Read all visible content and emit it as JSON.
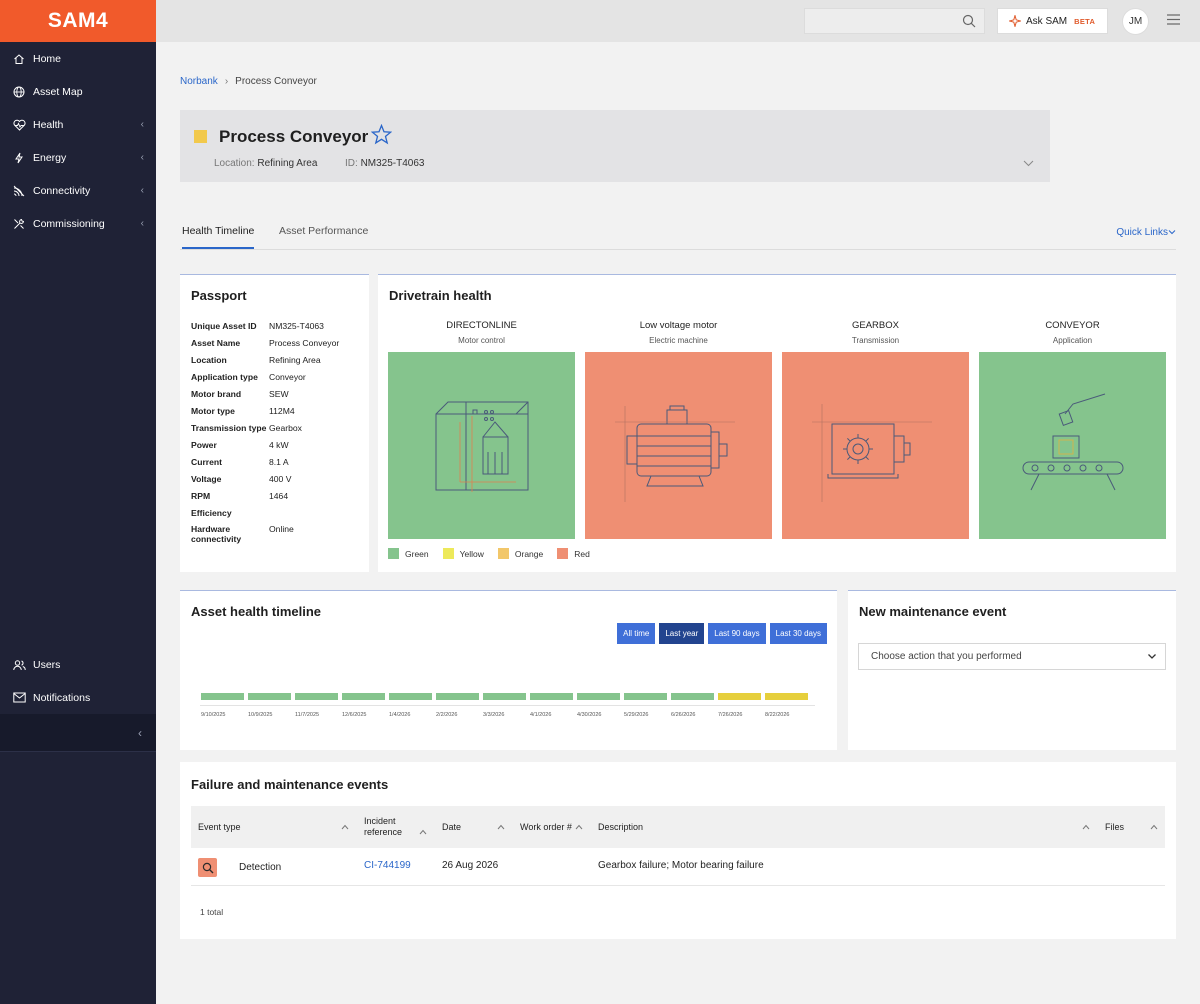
{
  "app": {
    "logo": "SAM4"
  },
  "sidebar": {
    "items": [
      {
        "label": "Home",
        "icon": "home-icon",
        "has_chevron": false
      },
      {
        "label": "Asset Map",
        "icon": "globe-icon",
        "has_chevron": false
      },
      {
        "label": "Health",
        "icon": "heart-pulse-icon",
        "has_chevron": true
      },
      {
        "label": "Energy",
        "icon": "bolt-icon",
        "has_chevron": true
      },
      {
        "label": "Connectivity",
        "icon": "signal-icon",
        "has_chevron": true
      },
      {
        "label": "Commissioning",
        "icon": "tools-icon",
        "has_chevron": true
      }
    ],
    "bottom_items": [
      {
        "label": "Users",
        "icon": "users-icon"
      },
      {
        "label": "Notifications",
        "icon": "mail-icon"
      }
    ],
    "chevron": "‹",
    "collapse": "‹"
  },
  "topbar": {
    "search_placeholder": "",
    "ask_label": "Ask SAM",
    "beta": "BETA",
    "avatar": "JM"
  },
  "breadcrumb": {
    "parent": "Norbank",
    "sep": "›",
    "current": "Process Conveyor"
  },
  "asset": {
    "title": "Process Conveyor",
    "status_color": "#f2c94c",
    "location_label": "Location:",
    "location": "Refining Area",
    "id_label": "ID:",
    "id": "NM325-T4063"
  },
  "tabs": [
    {
      "label": "Health Timeline",
      "active": true
    },
    {
      "label": "Asset Performance",
      "active": false
    }
  ],
  "quick_links": "Quick Links",
  "passport": {
    "title": "Passport",
    "rows": [
      {
        "k": "Unique Asset ID",
        "v": "NM325-T4063"
      },
      {
        "k": "Asset Name",
        "v": "Process Conveyor"
      },
      {
        "k": "Location",
        "v": "Refining Area"
      },
      {
        "k": "Application type",
        "v": "Conveyor"
      },
      {
        "k": "Motor brand",
        "v": "SEW"
      },
      {
        "k": "Motor type",
        "v": "112M4"
      },
      {
        "k": "Transmission type",
        "v": "Gearbox"
      },
      {
        "k": "Power",
        "v": "4 kW"
      },
      {
        "k": "Current",
        "v": "8.1 A"
      },
      {
        "k": "Voltage",
        "v": "400 V"
      },
      {
        "k": "RPM",
        "v": "1464"
      },
      {
        "k": "Efficiency",
        "v": ""
      },
      {
        "k": "Hardware connectivity",
        "v": "Online"
      }
    ]
  },
  "drivetrain": {
    "title": "Drivetrain health",
    "components": [
      {
        "name": "DIRECTONLINE",
        "sub": "Motor control",
        "status": "green"
      },
      {
        "name": "Low voltage motor",
        "sub": "Electric machine",
        "status": "red"
      },
      {
        "name": "GEARBOX",
        "sub": "Transmission",
        "status": "red"
      },
      {
        "name": "CONVEYOR",
        "sub": "Application",
        "status": "green"
      }
    ],
    "legend": [
      {
        "label": "Green",
        "color": "#85c48d"
      },
      {
        "label": "Yellow",
        "color": "#ede95a"
      },
      {
        "label": "Orange",
        "color": "#f2c76a"
      },
      {
        "label": "Red",
        "color": "#ef8f73"
      }
    ]
  },
  "timeline": {
    "title": "Asset health timeline",
    "ranges": [
      {
        "label": "All time",
        "selected": false
      },
      {
        "label": "Last year",
        "selected": true
      },
      {
        "label": "Last 90 days",
        "selected": false
      },
      {
        "label": "Last 30 days",
        "selected": false
      }
    ],
    "segments": [
      "green",
      "green",
      "green",
      "green",
      "green",
      "green",
      "green",
      "green",
      "green",
      "green",
      "green",
      "yellow",
      "yellow"
    ],
    "dates": [
      "9/10/2025",
      "10/9/2025",
      "11/7/2025",
      "12/6/2025",
      "1/4/2026",
      "2/2/2026",
      "3/3/2026",
      "4/1/2026",
      "4/30/2026",
      "5/29/2026",
      "6/26/2026",
      "7/26/2026",
      "8/22/2026"
    ],
    "colors": {
      "green": "#85c48d",
      "yellow": "#e6cf3c"
    }
  },
  "maintenance": {
    "title": "New maintenance event",
    "placeholder": "Choose action that you performed"
  },
  "events": {
    "title": "Failure and maintenance events",
    "columns": [
      "Event type",
      "Incident reference",
      "Date",
      "Work order #",
      "Description",
      "Files"
    ],
    "rows": [
      {
        "type": "Detection",
        "ref": "CI-744199",
        "date": "26 Aug 2026",
        "work_order": "",
        "description": "Gearbox failure; Motor bearing failure",
        "files": ""
      }
    ],
    "total": "1 total"
  }
}
